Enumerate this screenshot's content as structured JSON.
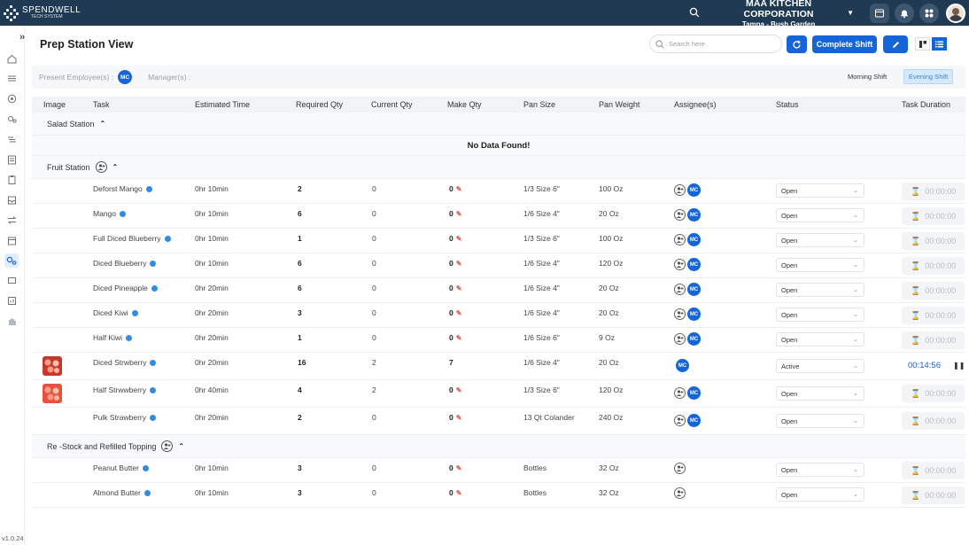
{
  "brand": {
    "name": "SPENDWELL",
    "sub": "TECH SYSTEM"
  },
  "company": {
    "name": "MAA KITCHEN CORPORATION",
    "location": "Tampa - Bush Garden"
  },
  "app_version": "v1.0.24",
  "page": {
    "title": "Prep Station View",
    "search_placeholder": "Search here",
    "complete_shift_label": "Complete Shift"
  },
  "infobar": {
    "present_label": "Present Employee(s) :",
    "present_initials": "MC",
    "manager_label": "Manager(s) :",
    "shifts": [
      "Morning Shift",
      "Evening Shift"
    ],
    "active_shift": "Evening Shift"
  },
  "table": {
    "columns": [
      "Image",
      "Task",
      "Estimated Time",
      "Required Qty",
      "Current Qty",
      "Make Qty",
      "Pan Size",
      "Pan Weight",
      "Assignee(s)",
      "Status",
      "Task Duration"
    ],
    "no_data": "No Data Found!",
    "groups": [
      {
        "name": "Salad Station",
        "rows": []
      },
      {
        "name": "Fruit Station",
        "rows": [
          {
            "task": "Deforst Mango",
            "time": "0hr 10min",
            "req": "2",
            "cur": "0",
            "make": "0",
            "pan": "1/3 Size 6\"",
            "weight": "100 Oz",
            "status": "Open",
            "duration": "00:00:00"
          },
          {
            "task": "Mango",
            "time": "0hr 10min",
            "req": "6",
            "cur": "0",
            "make": "0",
            "pan": "1/6 Size 4\"",
            "weight": "20 Oz",
            "status": "Open",
            "duration": "00:00:00"
          },
          {
            "task": "Full Diced Blueberry",
            "time": "0hr 10min",
            "req": "1",
            "cur": "0",
            "make": "0",
            "pan": "1/3 Size 6\"",
            "weight": "100 Oz",
            "status": "Open",
            "duration": "00:00:00"
          },
          {
            "task": "Diced Blueberry",
            "time": "0hr 10min",
            "req": "6",
            "cur": "0",
            "make": "0",
            "pan": "1/6 Size 4\"",
            "weight": "120 Oz",
            "status": "Open",
            "duration": "00:00:00"
          },
          {
            "task": "Diced Pineapple",
            "time": "0hr 20min",
            "req": "6",
            "cur": "0",
            "make": "0",
            "pan": "1/6 Size 4\"",
            "weight": "20 Oz",
            "status": "Open",
            "duration": "00:00:00"
          },
          {
            "task": "Diced Kiwi",
            "time": "0hr 20min",
            "req": "3",
            "cur": "0",
            "make": "0",
            "pan": "1/6 Size 4\"",
            "weight": "20 Oz",
            "status": "Open",
            "duration": "00:00:00"
          },
          {
            "task": "Half Kiwi",
            "time": "0hr 20min",
            "req": "1",
            "cur": "0",
            "make": "0",
            "pan": "1/6 Size 6\"",
            "weight": "9 Oz",
            "status": "Open",
            "duration": "00:00:00"
          },
          {
            "task": "Diced Strwberry",
            "time": "0hr 20min",
            "req": "16",
            "cur": "2",
            "make": "7",
            "pan": "1/6 Size 4\"",
            "weight": "20 Oz",
            "status": "Active",
            "duration": "00:14:56"
          },
          {
            "task": "Half Strwwberry",
            "time": "0hr 40min",
            "req": "4",
            "cur": "2",
            "make": "0",
            "pan": "1/3 Size 6\"",
            "weight": "120 Oz",
            "status": "Open",
            "duration": "00:00:00"
          },
          {
            "task": "Pulk Strawberry",
            "time": "0hr 20min",
            "req": "2",
            "cur": "0",
            "make": "0",
            "pan": "13 Qt Colander",
            "weight": "240 Oz",
            "status": "Open",
            "duration": "00:00:00"
          }
        ]
      },
      {
        "name": "Re -Stock and Refilled Topping",
        "rows": [
          {
            "task": "Peanut Butter",
            "time": "0hr 10min",
            "req": "3",
            "cur": "0",
            "make": "0",
            "pan": "Bottles",
            "weight": "32 Oz",
            "status": "Open",
            "duration": "00:00:00"
          },
          {
            "task": "Almond Butter",
            "time": "0hr 10min",
            "req": "3",
            "cur": "0",
            "make": "0",
            "pan": "Bottles",
            "weight": "32 Oz",
            "status": "Open",
            "duration": "00:00:00"
          }
        ]
      }
    ]
  },
  "assignee_initials": "MC",
  "colors": {
    "topbar": "#1f3a52",
    "primary": "#1565d8",
    "info": "#2f8de4",
    "pencil": "#e45a4f"
  }
}
